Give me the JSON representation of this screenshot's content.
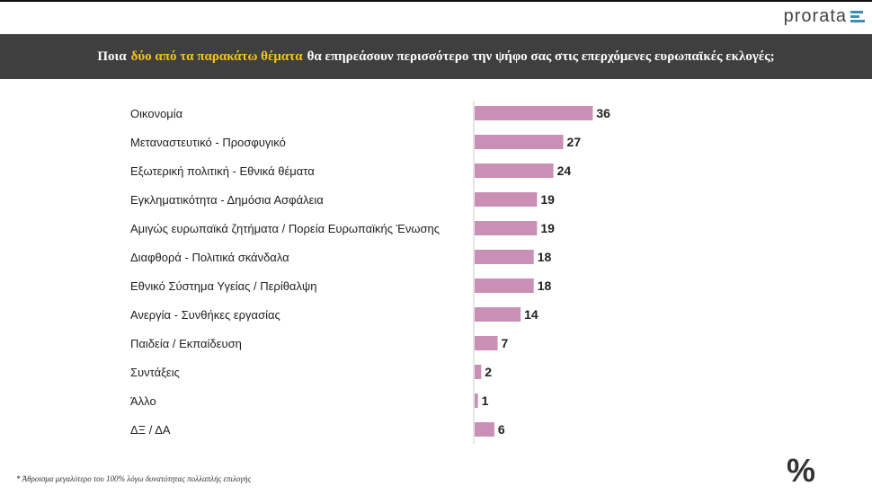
{
  "brand": {
    "name": "prorata",
    "accent": "#3a8fb7"
  },
  "header": {
    "title_pre": "Ποια",
    "title_highlight": "δύο από τα παρακάτω θέματα",
    "title_post": "θα επηρεάσουν περισσότερο την ψήφο σας στις επερχόμενες ευρωπαϊκές εκλογές;",
    "background": "#3f3f3f",
    "highlight_color": "#f5c518"
  },
  "footnote": "* Άθροισμα μεγαλύτερο του 100% λόγω δυνατότητας πολλαπλής επιλογής",
  "corner_icon": "percent-icon",
  "chart_data": {
    "type": "bar",
    "orientation": "horizontal",
    "categories": [
      "Οικονομία",
      "Μεταναστευτικό - Προσφυγικό",
      "Εξωτερική πολιτική - Εθνικά θέματα",
      "Εγκληματικότητα - Δημόσια Ασφάλεια",
      "Αμιγώς ευρωπαϊκά ζητήματα / Πορεία Ευρωπαϊκής Ένωσης",
      "Διαφθορά - Πολιτικά σκάνδαλα",
      "Εθνικό Σύστημα Υγείας / Περίθαλψη",
      "Ανεργία - Συνθήκες εργασίας",
      "Παιδεία / Εκπαίδευση",
      "Συντάξεις",
      "Άλλο",
      "ΔΞ / ΔΑ"
    ],
    "values": [
      36,
      27,
      24,
      19,
      19,
      18,
      18,
      14,
      7,
      2,
      1,
      6
    ],
    "bar_color": "#c98fb5",
    "xlim": [
      0,
      40
    ],
    "grid": false,
    "data_labels": true
  }
}
